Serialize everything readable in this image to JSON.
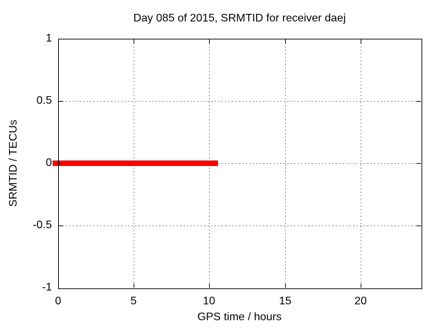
{
  "page": {
    "background": "#ffffff",
    "text_color": "#000000"
  },
  "chart_data": {
    "type": "line",
    "title": "Day 085 of 2015, SRMTID for receiver daej",
    "xlabel": "GPS time / hours",
    "ylabel": "SRMTID / TECUs",
    "xlim": [
      0,
      24
    ],
    "ylim": [
      -1,
      1
    ],
    "xticks": [
      0,
      5,
      10,
      15,
      20
    ],
    "yticks": [
      1,
      0.5,
      0,
      -0.5,
      -1
    ],
    "grid": true,
    "grid_style": "dotted",
    "grid_color": "#8a8a8a",
    "axis_color": "#000000",
    "legend": "none",
    "series": [
      {
        "name": "SRMTID",
        "color": "#ff0000",
        "style": "thick horizontal segment",
        "y_value": 0,
        "x_start": 0,
        "x_end": 10.6
      }
    ]
  }
}
